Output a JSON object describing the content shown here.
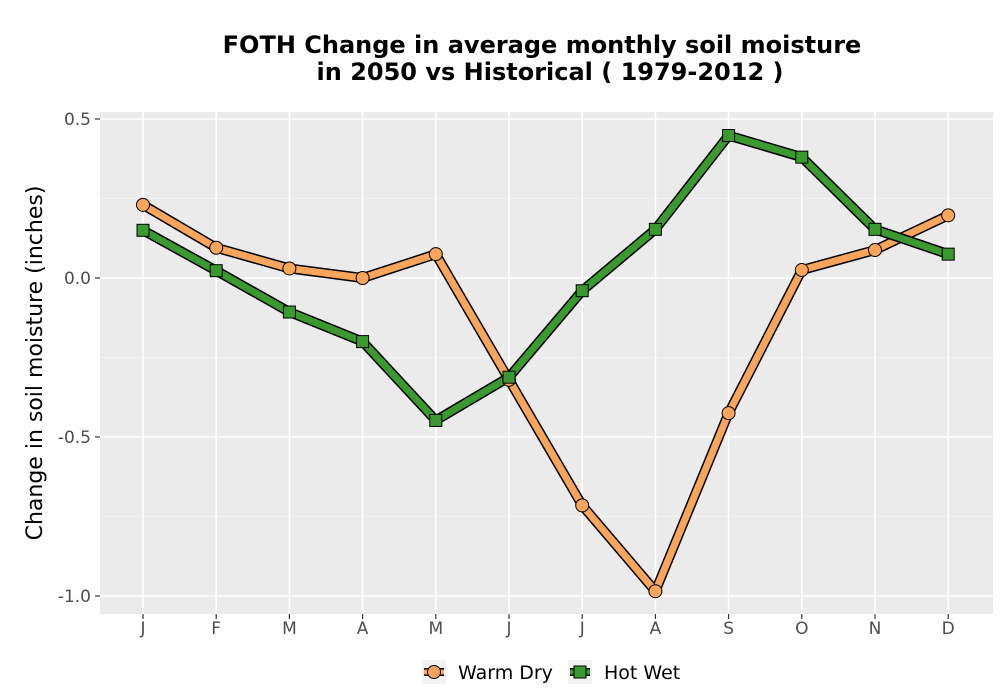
{
  "chart_data": {
    "type": "line",
    "title": "FOTH  Change in average monthly soil moisture",
    "subtitle": "in 2050 vs Historical ( 1979-2012 )",
    "xlabel": "",
    "ylabel": "Change in soil moisture (inches)",
    "categories": [
      "J",
      "F",
      "M",
      "A",
      "M",
      "J",
      "J",
      "A",
      "S",
      "O",
      "N",
      "D"
    ],
    "ylim": [
      -1.05,
      0.52
    ],
    "y_ticks": [
      0.5,
      0.0,
      -0.5,
      -1.0
    ],
    "y_tick_labels": [
      "0.5",
      "0.0",
      "-0.5",
      "-1.0"
    ],
    "grid": true,
    "legend_position": "bottom",
    "series": [
      {
        "name": "Warm Dry",
        "marker": "circle",
        "color": "#f9a55b",
        "values": [
          0.23,
          0.095,
          0.03,
          0.0,
          0.075,
          -0.32,
          -0.715,
          -0.985,
          -0.425,
          0.025,
          0.088,
          0.197
        ]
      },
      {
        "name": "Hot Wet",
        "marker": "square",
        "color": "#3a9a2f",
        "values": [
          0.15,
          0.023,
          -0.107,
          -0.2,
          -0.448,
          -0.312,
          -0.04,
          0.153,
          0.448,
          0.38,
          0.153,
          0.075
        ]
      }
    ]
  }
}
